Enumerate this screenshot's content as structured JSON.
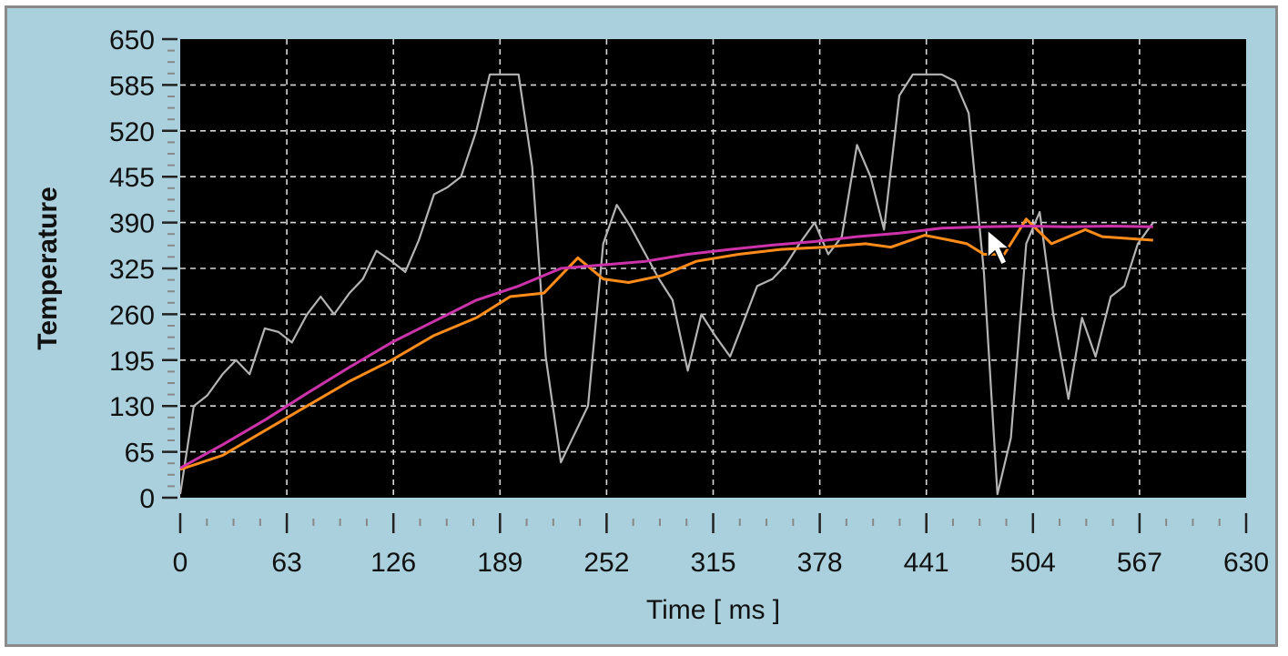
{
  "window": {
    "frame_color": "#a9d0dc",
    "plot_background": "#000000"
  },
  "chart_data": {
    "type": "line",
    "xlabel": "Time [ ms ]",
    "ylabel": "Temperature",
    "xlim": [
      0,
      630
    ],
    "ylim": [
      0,
      650
    ],
    "x_ticks": [
      0,
      63,
      126,
      189,
      252,
      315,
      378,
      441,
      504,
      567,
      630
    ],
    "y_ticks": [
      0,
      65,
      130,
      195,
      260,
      325,
      390,
      455,
      520,
      585,
      650
    ],
    "grid": true,
    "cursor_icon": "mouse-pointer-icon",
    "series": [
      {
        "color": "#b4b4b4",
        "points": [
          [
            0,
            5
          ],
          [
            8,
            130
          ],
          [
            16,
            145
          ],
          [
            25,
            175
          ],
          [
            33,
            195
          ],
          [
            41,
            175
          ],
          [
            50,
            240
          ],
          [
            58,
            235
          ],
          [
            66,
            220
          ],
          [
            75,
            260
          ],
          [
            83,
            285
          ],
          [
            91,
            260
          ],
          [
            100,
            290
          ],
          [
            108,
            310
          ],
          [
            116,
            350
          ],
          [
            125,
            335
          ],
          [
            133,
            320
          ],
          [
            141,
            365
          ],
          [
            150,
            430
          ],
          [
            158,
            440
          ],
          [
            166,
            455
          ],
          [
            175,
            520
          ],
          [
            183,
            600
          ],
          [
            191,
            600
          ],
          [
            200,
            600
          ],
          [
            208,
            470
          ],
          [
            216,
            200
          ],
          [
            225,
            50
          ],
          [
            233,
            90
          ],
          [
            241,
            130
          ],
          [
            250,
            360
          ],
          [
            258,
            415
          ],
          [
            266,
            385
          ],
          [
            275,
            345
          ],
          [
            283,
            310
          ],
          [
            291,
            280
          ],
          [
            300,
            180
          ],
          [
            308,
            260
          ],
          [
            316,
            230
          ],
          [
            325,
            200
          ],
          [
            333,
            250
          ],
          [
            341,
            300
          ],
          [
            350,
            310
          ],
          [
            358,
            330
          ],
          [
            366,
            360
          ],
          [
            375,
            390
          ],
          [
            383,
            345
          ],
          [
            391,
            370
          ],
          [
            400,
            500
          ],
          [
            408,
            455
          ],
          [
            416,
            380
          ],
          [
            425,
            570
          ],
          [
            433,
            600
          ],
          [
            441,
            600
          ],
          [
            450,
            600
          ],
          [
            458,
            590
          ],
          [
            466,
            545
          ],
          [
            475,
            320
          ],
          [
            483,
            5
          ],
          [
            491,
            85
          ],
          [
            500,
            360
          ],
          [
            508,
            405
          ],
          [
            516,
            260
          ],
          [
            525,
            140
          ],
          [
            533,
            255
          ],
          [
            541,
            200
          ],
          [
            550,
            285
          ],
          [
            558,
            300
          ],
          [
            566,
            360
          ],
          [
            575,
            390
          ]
        ]
      },
      {
        "color": "#ff8c1a",
        "points": [
          [
            0,
            40
          ],
          [
            25,
            60
          ],
          [
            50,
            95
          ],
          [
            75,
            130
          ],
          [
            100,
            165
          ],
          [
            125,
            195
          ],
          [
            150,
            230
          ],
          [
            175,
            255
          ],
          [
            195,
            285
          ],
          [
            215,
            290
          ],
          [
            235,
            340
          ],
          [
            250,
            310
          ],
          [
            265,
            305
          ],
          [
            285,
            315
          ],
          [
            305,
            335
          ],
          [
            330,
            345
          ],
          [
            355,
            352
          ],
          [
            380,
            355
          ],
          [
            405,
            360
          ],
          [
            420,
            355
          ],
          [
            440,
            372
          ],
          [
            455,
            365
          ],
          [
            465,
            360
          ],
          [
            475,
            345
          ],
          [
            487,
            345
          ],
          [
            500,
            395
          ],
          [
            515,
            360
          ],
          [
            535,
            380
          ],
          [
            545,
            370
          ],
          [
            575,
            365
          ]
        ]
      },
      {
        "color": "#cc33aa",
        "points": [
          [
            0,
            42
          ],
          [
            25,
            75
          ],
          [
            50,
            110
          ],
          [
            75,
            148
          ],
          [
            100,
            185
          ],
          [
            125,
            220
          ],
          [
            150,
            250
          ],
          [
            175,
            280
          ],
          [
            200,
            300
          ],
          [
            225,
            325
          ],
          [
            250,
            330
          ],
          [
            275,
            335
          ],
          [
            300,
            345
          ],
          [
            325,
            352
          ],
          [
            350,
            358
          ],
          [
            375,
            363
          ],
          [
            400,
            370
          ],
          [
            425,
            375
          ],
          [
            450,
            382
          ],
          [
            475,
            384
          ],
          [
            500,
            385
          ],
          [
            525,
            384
          ],
          [
            550,
            385
          ],
          [
            575,
            384
          ]
        ]
      }
    ]
  }
}
